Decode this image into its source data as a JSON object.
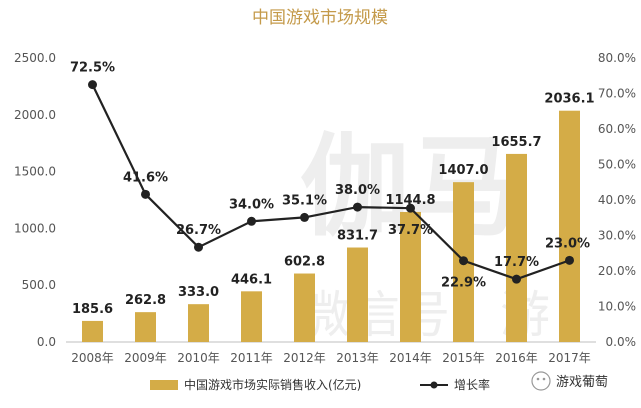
{
  "chart_data": {
    "type": "bar",
    "title": "中国游戏市场规模",
    "categories": [
      "2008年",
      "2009年",
      "2010年",
      "2011年",
      "2012年",
      "2013年",
      "2014年",
      "2015年",
      "2016年",
      "2017年"
    ],
    "series": [
      {
        "name": "中国游戏市场实际销售收入(亿元)",
        "type": "bar",
        "axis": "left",
        "values": [
          185.6,
          262.8,
          333.0,
          446.1,
          602.8,
          831.7,
          1144.8,
          1407.0,
          1655.7,
          2036.1
        ],
        "labels": [
          "185.6",
          "262.8",
          "333.0",
          "446.1",
          "602.8",
          "831.7",
          "1144.8",
          "1407.0",
          "1655.7",
          "2036.1"
        ],
        "color": "#d4ac47"
      },
      {
        "name": "增长率",
        "type": "line",
        "axis": "right",
        "values": [
          72.5,
          41.6,
          26.7,
          34.0,
          35.1,
          38.0,
          37.7,
          22.9,
          17.7,
          23.0
        ],
        "labels": [
          "72.5%",
          "41.6%",
          "26.7%",
          "34.0%",
          "35.1%",
          "38.0%",
          "37.7%",
          "22.9%",
          "17.7%",
          "23.0%"
        ],
        "color": "#222222"
      }
    ],
    "y_left": {
      "range": [
        0,
        2500
      ],
      "ticks": [
        "0.0",
        "500.0",
        "1000.0",
        "1500.0",
        "2000.0",
        "2500.0"
      ]
    },
    "y_right": {
      "range": [
        0,
        80
      ],
      "ticks": [
        "0.0%",
        "10.0%",
        "20.0%",
        "30.0%",
        "40.0%",
        "50.0%",
        "60.0%",
        "70.0%",
        "80.0%"
      ]
    },
    "grid": false,
    "legend": "bottom",
    "watermark": "伽马 微信号：游",
    "brand_label": "游戏葡萄"
  }
}
